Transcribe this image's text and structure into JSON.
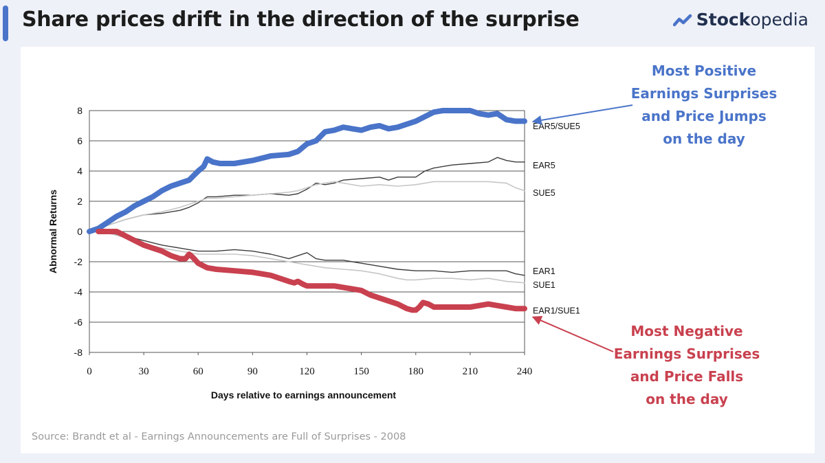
{
  "header": {
    "title": "Share prices drift in the direction of the surprise"
  },
  "brand": {
    "name_strong": "Stock",
    "name_light": "opedia",
    "icon": "trend-up-icon"
  },
  "colors": {
    "accent": "#4a74c9",
    "positive": "#4a74c9",
    "negative": "#c9414f"
  },
  "callouts": {
    "positive": [
      "Most Positive",
      "Earnings Surprises",
      "and Price Jumps",
      "on the day"
    ],
    "negative": [
      "Most Negative",
      "Earnings Surprises",
      "and Price Falls",
      "on the day"
    ]
  },
  "source": "Source: Brandt et al - Earnings Announcements are Full of Surprises - 2008",
  "chart_data": {
    "type": "line",
    "title": "",
    "xlabel": "Days relative to earnings announcement",
    "ylabel": "Abnormal Returns",
    "xlim": [
      0,
      240
    ],
    "ylim": [
      -8,
      8
    ],
    "xticks": [
      0,
      30,
      60,
      90,
      120,
      150,
      180,
      210,
      240
    ],
    "yticks": [
      8,
      6,
      4,
      2,
      0,
      -2,
      -4,
      -6,
      -8
    ],
    "grid": "horizontal",
    "series": [
      {
        "name": "EAR5/SUE5",
        "color": "#4a74c9",
        "width": 8,
        "label_y": 7.0,
        "x": [
          0,
          5,
          10,
          15,
          20,
          25,
          30,
          35,
          40,
          45,
          50,
          55,
          60,
          63,
          65,
          68,
          72,
          80,
          90,
          100,
          110,
          115,
          120,
          125,
          130,
          135,
          140,
          145,
          150,
          155,
          160,
          165,
          170,
          175,
          180,
          185,
          190,
          195,
          200,
          205,
          210,
          215,
          220,
          225,
          230,
          235,
          240
        ],
        "y": [
          0,
          0.2,
          0.6,
          1.0,
          1.3,
          1.7,
          2.0,
          2.3,
          2.7,
          3.0,
          3.2,
          3.4,
          4.0,
          4.3,
          4.8,
          4.6,
          4.5,
          4.5,
          4.7,
          5.0,
          5.1,
          5.3,
          5.8,
          6.0,
          6.6,
          6.7,
          6.9,
          6.8,
          6.7,
          6.9,
          7.0,
          6.8,
          6.9,
          7.1,
          7.3,
          7.6,
          7.9,
          8.0,
          8.0,
          8.0,
          8.0,
          7.8,
          7.7,
          7.8,
          7.4,
          7.3,
          7.3
        ]
      },
      {
        "name": "EAR5",
        "color": "#3c3c3c",
        "width": 1.4,
        "label_y": 4.4,
        "x": [
          0,
          10,
          20,
          30,
          40,
          50,
          55,
          60,
          65,
          70,
          80,
          90,
          100,
          110,
          115,
          120,
          125,
          130,
          135,
          140,
          150,
          160,
          165,
          170,
          180,
          185,
          190,
          200,
          210,
          220,
          225,
          230,
          235,
          240
        ],
        "y": [
          0,
          0.4,
          0.8,
          1.1,
          1.2,
          1.4,
          1.6,
          1.9,
          2.3,
          2.3,
          2.4,
          2.4,
          2.5,
          2.4,
          2.5,
          2.8,
          3.2,
          3.1,
          3.2,
          3.4,
          3.5,
          3.6,
          3.4,
          3.6,
          3.6,
          4.0,
          4.2,
          4.4,
          4.5,
          4.6,
          4.9,
          4.7,
          4.6,
          4.6
        ]
      },
      {
        "name": "SUE5",
        "color": "#c6c6c6",
        "width": 1.6,
        "label_y": 2.6,
        "x": [
          0,
          10,
          20,
          30,
          40,
          50,
          55,
          60,
          65,
          70,
          80,
          90,
          100,
          110,
          115,
          120,
          125,
          130,
          135,
          140,
          145,
          150,
          160,
          170,
          180,
          190,
          200,
          210,
          220,
          230,
          235,
          240
        ],
        "y": [
          0,
          0.4,
          0.8,
          1.1,
          1.3,
          1.6,
          1.8,
          2.0,
          2.2,
          2.2,
          2.3,
          2.4,
          2.5,
          2.6,
          2.7,
          2.9,
          3.1,
          3.2,
          3.3,
          3.2,
          3.1,
          3.0,
          3.1,
          3.0,
          3.1,
          3.3,
          3.3,
          3.3,
          3.3,
          3.2,
          2.9,
          2.7
        ]
      },
      {
        "name": "EAR1",
        "color": "#3c3c3c",
        "width": 1.4,
        "label_y": -2.6,
        "x": [
          0,
          10,
          20,
          30,
          40,
          50,
          55,
          60,
          70,
          80,
          90,
          100,
          110,
          115,
          120,
          125,
          130,
          140,
          145,
          150,
          160,
          170,
          180,
          185,
          190,
          200,
          210,
          220,
          230,
          235,
          240
        ],
        "y": [
          0,
          -0.1,
          -0.3,
          -0.6,
          -0.9,
          -1.1,
          -1.2,
          -1.3,
          -1.3,
          -1.2,
          -1.3,
          -1.5,
          -1.8,
          -1.6,
          -1.4,
          -1.8,
          -1.9,
          -1.9,
          -2.0,
          -2.1,
          -2.3,
          -2.5,
          -2.6,
          -2.6,
          -2.6,
          -2.7,
          -2.6,
          -2.6,
          -2.6,
          -2.8,
          -2.9
        ]
      },
      {
        "name": "SUE1",
        "color": "#c6c6c6",
        "width": 1.6,
        "label_y": -3.5,
        "x": [
          0,
          10,
          20,
          30,
          40,
          50,
          55,
          60,
          70,
          80,
          90,
          100,
          110,
          120,
          130,
          140,
          150,
          160,
          170,
          175,
          180,
          190,
          200,
          210,
          220,
          230,
          240
        ],
        "y": [
          0,
          -0.1,
          -0.4,
          -0.8,
          -1.1,
          -1.3,
          -1.4,
          -1.5,
          -1.5,
          -1.5,
          -1.6,
          -1.8,
          -2.0,
          -2.2,
          -2.4,
          -2.5,
          -2.6,
          -2.8,
          -3.1,
          -3.2,
          -3.2,
          -3.1,
          -3.1,
          -3.2,
          -3.1,
          -3.3,
          -3.4
        ]
      },
      {
        "name": "EAR1/SUE1",
        "color": "#c9414f",
        "width": 8,
        "label_y": -5.2,
        "x": [
          5,
          10,
          15,
          20,
          25,
          30,
          35,
          40,
          45,
          50,
          53,
          55,
          57,
          60,
          65,
          70,
          80,
          90,
          95,
          100,
          105,
          110,
          113,
          115,
          118,
          120,
          125,
          130,
          135,
          140,
          145,
          150,
          155,
          160,
          165,
          170,
          175,
          178,
          180,
          182,
          184,
          187,
          190,
          200,
          205,
          210,
          215,
          220,
          225,
          230,
          235,
          240
        ],
        "y": [
          0,
          0,
          0,
          -0.3,
          -0.6,
          -0.9,
          -1.1,
          -1.3,
          -1.6,
          -1.8,
          -1.8,
          -1.5,
          -1.7,
          -2.1,
          -2.4,
          -2.5,
          -2.6,
          -2.7,
          -2.8,
          -2.9,
          -3.1,
          -3.3,
          -3.4,
          -3.3,
          -3.5,
          -3.6,
          -3.6,
          -3.6,
          -3.6,
          -3.7,
          -3.8,
          -3.9,
          -4.2,
          -4.4,
          -4.6,
          -4.8,
          -5.1,
          -5.2,
          -5.2,
          -5.0,
          -4.7,
          -4.8,
          -5.0,
          -5.0,
          -5.0,
          -5.0,
          -4.9,
          -4.8,
          -4.9,
          -5.0,
          -5.1,
          -5.1
        ]
      }
    ],
    "annotations": [
      {
        "target": "EAR5/SUE5",
        "color": "#4a74c9"
      },
      {
        "target": "EAR1/SUE1",
        "color": "#c9414f"
      }
    ]
  }
}
